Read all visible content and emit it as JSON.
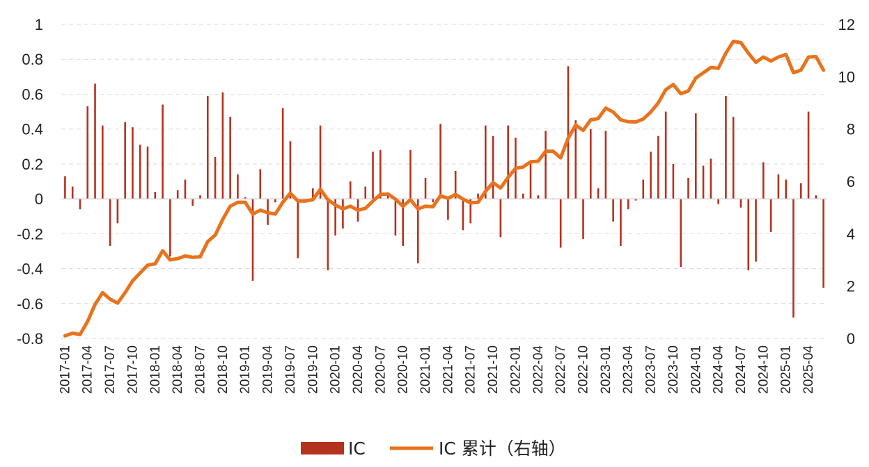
{
  "chart_data": {
    "type": "bar+line",
    "colors": {
      "bar": "#B5321E",
      "line": "#E8731E"
    },
    "y_left": {
      "ylim": [
        -0.8,
        1.0
      ],
      "ticks": [
        "1",
        "0.8",
        "0.6",
        "0.4",
        "0.2",
        "0",
        "-0.2",
        "-0.4",
        "-0.6",
        "-0.8"
      ]
    },
    "y_right": {
      "ylim": [
        0,
        12
      ],
      "ticks": [
        "12",
        "10",
        "8",
        "6",
        "4",
        "2",
        "0"
      ]
    },
    "x_start": "2017-01",
    "x_tick_labels": [
      "2017-01",
      "2017-04",
      "2017-07",
      "2017-10",
      "2018-01",
      "2018-04",
      "2018-07",
      "2018-10",
      "2019-01",
      "2019-04",
      "2019-07",
      "2019-10",
      "2020-01",
      "2020-04",
      "2020-07",
      "2020-10",
      "2021-01",
      "2021-04",
      "2021-07",
      "2021-10",
      "2022-01",
      "2022-04",
      "2022-07",
      "2022-10",
      "2023-01",
      "2023-04",
      "2023-07",
      "2023-10",
      "2024-01",
      "2024-04",
      "2024-07",
      "2024-10",
      "2025-01",
      "2025-04"
    ],
    "series": [
      {
        "name": "IC",
        "type": "bar",
        "axis": "left",
        "values": [
          0.13,
          0.07,
          -0.06,
          0.53,
          0.66,
          0.42,
          -0.27,
          -0.14,
          0.44,
          0.41,
          0.31,
          0.3,
          0.04,
          0.54,
          -0.33,
          0.05,
          0.11,
          -0.04,
          0.02,
          0.59,
          0.24,
          0.61,
          0.47,
          0.14,
          0.01,
          -0.47,
          0.17,
          -0.15,
          -0.02,
          0.52,
          0.33,
          -0.34,
          0.0,
          0.06,
          0.42,
          -0.41,
          -0.21,
          -0.17,
          0.1,
          -0.13,
          0.07,
          0.27,
          0.28,
          0.02,
          -0.21,
          -0.27,
          0.28,
          -0.37,
          0.12,
          -0.02,
          0.43,
          -0.12,
          0.16,
          -0.18,
          -0.14,
          0.03,
          0.42,
          0.36,
          -0.22,
          0.42,
          0.35,
          0.03,
          0.21,
          0.02,
          0.39,
          0.0,
          -0.28,
          0.76,
          0.45,
          -0.23,
          0.4,
          0.06,
          0.39,
          -0.13,
          -0.27,
          -0.06,
          -0.01,
          0.11,
          0.27,
          0.36,
          0.5,
          0.2,
          -0.39,
          0.12,
          0.49,
          0.19,
          0.23,
          -0.03,
          0.59,
          0.47,
          -0.05,
          -0.41,
          -0.36,
          0.21,
          -0.19,
          0.14,
          0.11,
          -0.68,
          0.09,
          0.5,
          0.02,
          -0.51
        ]
      },
      {
        "name": "IC 累计（右轴）",
        "type": "line",
        "axis": "right",
        "values": [
          0.1,
          0.2,
          0.15,
          0.65,
          1.3,
          1.75,
          1.5,
          1.35,
          1.75,
          2.2,
          2.5,
          2.8,
          2.85,
          3.35,
          3.0,
          3.05,
          3.15,
          3.1,
          3.12,
          3.7,
          3.95,
          4.55,
          5.05,
          5.2,
          5.2,
          4.75,
          4.9,
          4.8,
          4.75,
          5.2,
          5.55,
          5.25,
          5.25,
          5.3,
          5.7,
          5.3,
          5.1,
          4.95,
          5.05,
          4.9,
          4.97,
          5.25,
          5.5,
          5.52,
          5.32,
          5.05,
          5.3,
          4.95,
          5.05,
          5.03,
          5.46,
          5.35,
          5.5,
          5.32,
          5.18,
          5.2,
          5.62,
          5.95,
          5.75,
          6.15,
          6.5,
          6.55,
          6.75,
          6.77,
          7.15,
          7.15,
          6.9,
          7.65,
          8.15,
          7.95,
          8.35,
          8.4,
          8.8,
          8.65,
          8.35,
          8.28,
          8.27,
          8.38,
          8.65,
          9.0,
          9.5,
          9.7,
          9.35,
          9.45,
          9.95,
          10.15,
          10.35,
          10.32,
          10.9,
          11.35,
          11.3,
          10.9,
          10.55,
          10.75,
          10.6,
          10.75,
          10.85,
          10.15,
          10.25,
          10.75,
          10.77,
          10.25
        ]
      }
    ],
    "legend": {
      "placement": "bottom-center",
      "entries": [
        "IC",
        "IC 累计（右轴）"
      ]
    }
  }
}
